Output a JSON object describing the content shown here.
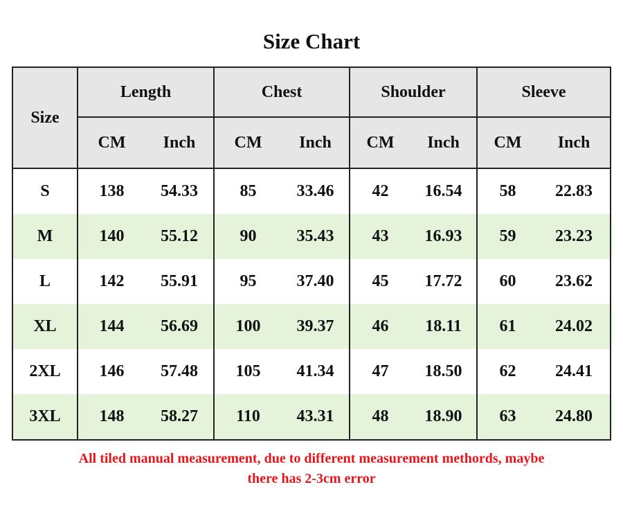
{
  "title": "Size Chart",
  "colors": {
    "header_bg": "#e6e6e6",
    "stripe_bg": "#e4f3da",
    "note": "#e8141b"
  },
  "table": {
    "size_header": "Size",
    "groups": [
      "Length",
      "Chest",
      "Shoulder",
      "Sleeve"
    ],
    "unit_labels": {
      "cm": "CM",
      "inch": "Inch"
    },
    "rows": [
      {
        "size": "S",
        "values": [
          "138",
          "54.33",
          "85",
          "33.46",
          "42",
          "16.54",
          "58",
          "22.83"
        ]
      },
      {
        "size": "M",
        "values": [
          "140",
          "55.12",
          "90",
          "35.43",
          "43",
          "16.93",
          "59",
          "23.23"
        ]
      },
      {
        "size": "L",
        "values": [
          "142",
          "55.91",
          "95",
          "37.40",
          "45",
          "17.72",
          "60",
          "23.62"
        ]
      },
      {
        "size": "XL",
        "values": [
          "144",
          "56.69",
          "100",
          "39.37",
          "46",
          "18.11",
          "61",
          "24.02"
        ]
      },
      {
        "size": "2XL",
        "values": [
          "146",
          "57.48",
          "105",
          "41.34",
          "47",
          "18.50",
          "62",
          "24.41"
        ]
      },
      {
        "size": "3XL",
        "values": [
          "148",
          "58.27",
          "110",
          "43.31",
          "48",
          "18.90",
          "63",
          "24.80"
        ]
      }
    ]
  },
  "note": {
    "line1": "All tiled manual measurement, due to different measurement methords, maybe",
    "line2": "there has 2-3cm error"
  }
}
